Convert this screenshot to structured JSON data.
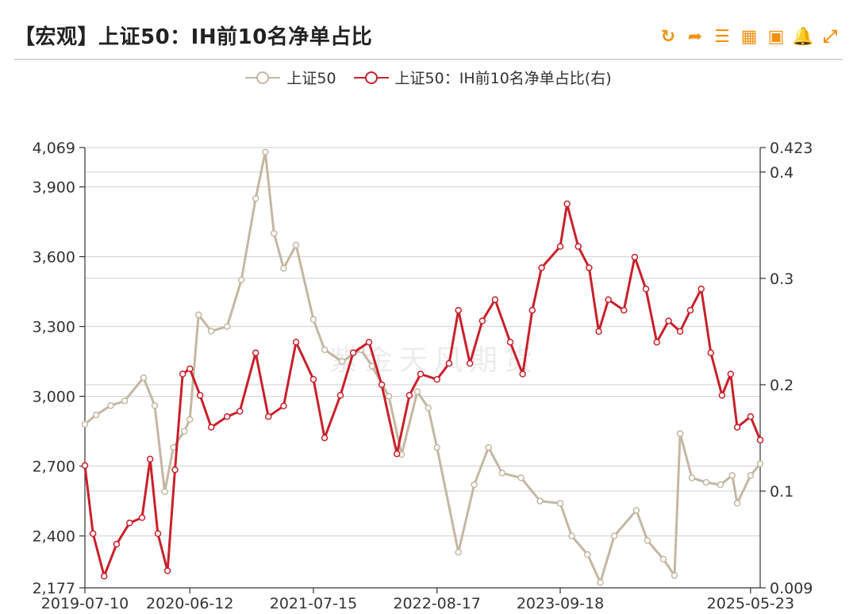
{
  "header": {
    "title": "【宏观】上证50：IH前10名净单占比",
    "tools": [
      {
        "name": "refresh-icon",
        "glyph": "↻"
      },
      {
        "name": "share-icon",
        "glyph": "➦"
      },
      {
        "name": "list-icon",
        "glyph": "☰"
      },
      {
        "name": "table-icon",
        "glyph": "▦"
      },
      {
        "name": "image-icon",
        "glyph": "▣"
      },
      {
        "name": "bell-icon",
        "glyph": "🔔"
      },
      {
        "name": "expand-icon",
        "glyph": "⤢"
      }
    ]
  },
  "watermark": "紫金天风期货",
  "chart_data": {
    "type": "line",
    "title": "【宏观】上证50：IH前10名净单占比",
    "legend_position": "top-center",
    "grid": true,
    "x_ticks": [
      "2019-07-10",
      "2020-06-12",
      "2021-07-15",
      "2022-08-17",
      "2023-09-18",
      "2025-05-23"
    ],
    "x_range": [
      "2019-07-10",
      "2025-06-23"
    ],
    "y_left": {
      "min": 2177,
      "max": 4069,
      "ticks": [
        "4,069",
        "3,900",
        "3,600",
        "3,300",
        "3,000",
        "2,700",
        "2,400",
        "2,177"
      ],
      "tick_values": [
        4069,
        3900,
        3600,
        3300,
        3000,
        2700,
        2400,
        2177
      ]
    },
    "y_right": {
      "min": 0.009,
      "max": 0.423,
      "ticks": [
        "0.423",
        "0.4",
        "0.3",
        "0.2",
        "0.1",
        "0.009"
      ],
      "tick_values": [
        0.423,
        0.4,
        0.3,
        0.2,
        0.1,
        0.009
      ]
    },
    "series": [
      {
        "name": "上证50",
        "axis": "left",
        "color": "#c4b7a2",
        "points": [
          [
            "2019-07-10",
            2880
          ],
          [
            "2019-08-15",
            2920
          ],
          [
            "2019-10-01",
            2960
          ],
          [
            "2019-11-15",
            2980
          ],
          [
            "2020-01-15",
            3080
          ],
          [
            "2020-02-20",
            2960
          ],
          [
            "2020-03-23",
            2590
          ],
          [
            "2020-04-20",
            2780
          ],
          [
            "2020-05-25",
            2850
          ],
          [
            "2020-06-12",
            2900
          ],
          [
            "2020-07-10",
            3350
          ],
          [
            "2020-08-20",
            3280
          ],
          [
            "2020-10-10",
            3300
          ],
          [
            "2020-11-25",
            3500
          ],
          [
            "2021-01-10",
            3850
          ],
          [
            "2021-02-10",
            4050
          ],
          [
            "2021-03-10",
            3700
          ],
          [
            "2021-04-10",
            3550
          ],
          [
            "2021-05-20",
            3650
          ],
          [
            "2021-07-15",
            3330
          ],
          [
            "2021-08-20",
            3200
          ],
          [
            "2021-10-15",
            3150
          ],
          [
            "2021-12-15",
            3200
          ],
          [
            "2022-01-20",
            3130
          ],
          [
            "2022-03-15",
            3000
          ],
          [
            "2022-04-25",
            2750
          ],
          [
            "2022-06-15",
            3020
          ],
          [
            "2022-07-20",
            2950
          ],
          [
            "2022-08-17",
            2780
          ],
          [
            "2022-10-25",
            2330
          ],
          [
            "2022-12-15",
            2620
          ],
          [
            "2023-01-30",
            2780
          ],
          [
            "2023-03-15",
            2670
          ],
          [
            "2023-05-15",
            2650
          ],
          [
            "2023-07-15",
            2550
          ],
          [
            "2023-09-18",
            2540
          ],
          [
            "2023-10-25",
            2400
          ],
          [
            "2023-12-15",
            2320
          ],
          [
            "2024-01-25",
            2200
          ],
          [
            "2024-03-10",
            2400
          ],
          [
            "2024-05-20",
            2510
          ],
          [
            "2024-06-25",
            2380
          ],
          [
            "2024-08-15",
            2300
          ],
          [
            "2024-09-20",
            2230
          ],
          [
            "2024-10-08",
            2840
          ],
          [
            "2024-11-15",
            2650
          ],
          [
            "2024-12-31",
            2630
          ],
          [
            "2025-02-15",
            2620
          ],
          [
            "2025-03-25",
            2660
          ],
          [
            "2025-04-10",
            2540
          ],
          [
            "2025-05-23",
            2660
          ],
          [
            "2025-06-23",
            2710
          ]
        ]
      },
      {
        "name": "上证50：IH前10名净单占比(右)",
        "axis": "right",
        "color": "#c8202b",
        "points": [
          [
            "2019-07-10",
            0.124
          ],
          [
            "2019-08-05",
            0.06
          ],
          [
            "2019-09-10",
            0.02
          ],
          [
            "2019-10-20",
            0.05
          ],
          [
            "2019-12-01",
            0.07
          ],
          [
            "2020-01-10",
            0.075
          ],
          [
            "2020-02-05",
            0.13
          ],
          [
            "2020-03-01",
            0.06
          ],
          [
            "2020-04-01",
            0.025
          ],
          [
            "2020-04-25",
            0.12
          ],
          [
            "2020-05-20",
            0.21
          ],
          [
            "2020-06-12",
            0.215
          ],
          [
            "2020-07-15",
            0.19
          ],
          [
            "2020-08-20",
            0.16
          ],
          [
            "2020-10-10",
            0.17
          ],
          [
            "2020-11-20",
            0.175
          ],
          [
            "2021-01-10",
            0.23
          ],
          [
            "2021-02-20",
            0.17
          ],
          [
            "2021-04-10",
            0.18
          ],
          [
            "2021-05-20",
            0.24
          ],
          [
            "2021-07-15",
            0.205
          ],
          [
            "2021-08-20",
            0.15
          ],
          [
            "2021-10-10",
            0.19
          ],
          [
            "2021-11-20",
            0.23
          ],
          [
            "2022-01-10",
            0.24
          ],
          [
            "2022-02-20",
            0.2
          ],
          [
            "2022-04-10",
            0.135
          ],
          [
            "2022-05-20",
            0.19
          ],
          [
            "2022-06-25",
            0.21
          ],
          [
            "2022-08-17",
            0.205
          ],
          [
            "2022-09-25",
            0.22
          ],
          [
            "2022-10-25",
            0.27
          ],
          [
            "2022-12-01",
            0.22
          ],
          [
            "2023-01-10",
            0.26
          ],
          [
            "2023-02-20",
            0.28
          ],
          [
            "2023-04-10",
            0.24
          ],
          [
            "2023-05-20",
            0.21
          ],
          [
            "2023-06-20",
            0.27
          ],
          [
            "2023-07-20",
            0.31
          ],
          [
            "2023-09-18",
            0.33
          ],
          [
            "2023-10-10",
            0.37
          ],
          [
            "2023-11-15",
            0.33
          ],
          [
            "2023-12-20",
            0.31
          ],
          [
            "2024-01-20",
            0.25
          ],
          [
            "2024-02-20",
            0.28
          ],
          [
            "2024-04-10",
            0.27
          ],
          [
            "2024-05-15",
            0.32
          ],
          [
            "2024-06-20",
            0.29
          ],
          [
            "2024-07-25",
            0.24
          ],
          [
            "2024-09-01",
            0.26
          ],
          [
            "2024-10-08",
            0.25
          ],
          [
            "2024-11-10",
            0.27
          ],
          [
            "2024-12-15",
            0.29
          ],
          [
            "2025-01-15",
            0.23
          ],
          [
            "2025-02-20",
            0.19
          ],
          [
            "2025-03-20",
            0.21
          ],
          [
            "2025-04-10",
            0.16
          ],
          [
            "2025-05-23",
            0.17
          ],
          [
            "2025-06-23",
            0.148
          ]
        ]
      }
    ]
  }
}
